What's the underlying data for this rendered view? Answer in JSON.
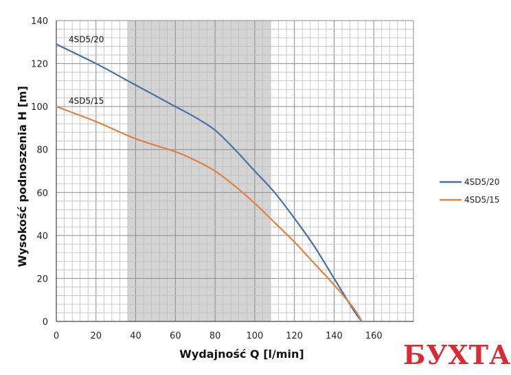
{
  "chart_data": {
    "type": "line",
    "xlabel": "Wydajność Q [l/min]",
    "ylabel": "Wysokość podnoszenia H [m]",
    "xlim": [
      0,
      180
    ],
    "ylim": [
      0,
      140
    ],
    "x_ticks": [
      0,
      20,
      40,
      60,
      80,
      100,
      120,
      140,
      160
    ],
    "y_ticks": [
      0,
      20,
      40,
      60,
      80,
      100,
      120,
      140
    ],
    "x_tick_labels": [
      "0",
      "20",
      "40",
      "60",
      "80",
      "100",
      "120",
      "140",
      "160"
    ],
    "y_tick_labels": [
      "0",
      "20",
      "40",
      "60",
      "80",
      "100",
      "120",
      "140"
    ],
    "grid": true,
    "minor_grid": true,
    "highlight_band": {
      "x_from": 36,
      "x_to": 108,
      "color": "#d4d4d4"
    },
    "legend_position": "right",
    "series": [
      {
        "name": "4SD5/20",
        "color": "#4a6fa5",
        "x": [
          0,
          20,
          40,
          60,
          70,
          80,
          90,
          100,
          110,
          120,
          130,
          140,
          150,
          154
        ],
        "y": [
          129,
          120,
          110,
          100,
          95,
          89,
          80,
          70,
          60,
          48,
          35,
          20,
          5,
          0
        ]
      },
      {
        "name": "4SD5/15",
        "color": "#e0813d",
        "x": [
          0,
          20,
          40,
          60,
          70,
          80,
          90,
          100,
          110,
          120,
          130,
          140,
          150,
          154
        ],
        "y": [
          100,
          93,
          85,
          79,
          75,
          70,
          63,
          55,
          46,
          37,
          27,
          17,
          6,
          0
        ]
      }
    ]
  },
  "watermark": {
    "text": "БУХТА"
  }
}
